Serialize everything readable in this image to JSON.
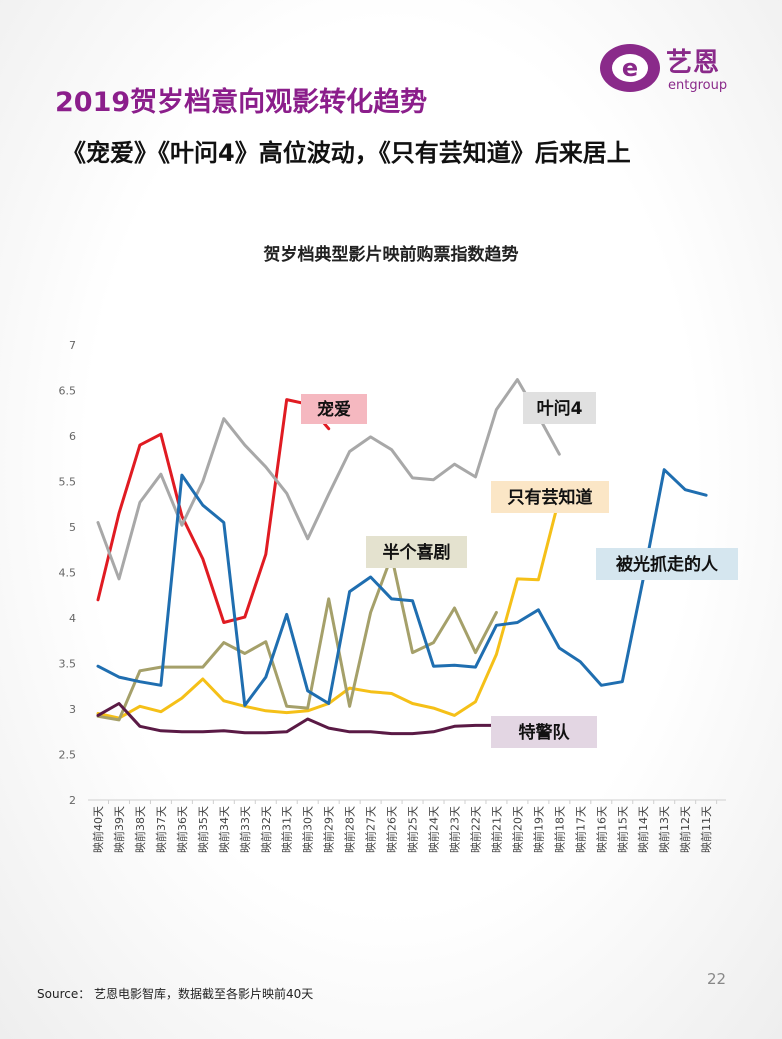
{
  "header": {
    "title": "2019贺岁档意向观影转化趋势",
    "subtitle": "《宠爱》《叶问4》高位波动，《只有芸知道》后来居上",
    "logo_cn": "艺恩",
    "logo_en": "entgroup"
  },
  "colors": {
    "title": "#8b1e8b",
    "logo": "#8a2a8a"
  },
  "footer": {
    "source": "Source： 艺恩电影智库，数据截至各影片映前40天",
    "page": "22"
  },
  "chart_data": {
    "type": "line",
    "title": "贺岁档典型影片映前购票指数趋势",
    "xlabel": "",
    "ylabel": "",
    "ylim": [
      2,
      7
    ],
    "yticks": [
      "2",
      "2.5",
      "3",
      "3.5",
      "4",
      "4.5",
      "5",
      "5.5",
      "6",
      "6.5",
      "7"
    ],
    "grid": false,
    "categories": [
      "映前40天",
      "映前39天",
      "映前38天",
      "映前37天",
      "映前36天",
      "映前35天",
      "映前34天",
      "映前33天",
      "映前32天",
      "映前31天",
      "映前30天",
      "映前29天",
      "映前28天",
      "映前27天",
      "映前26天",
      "映前25天",
      "映前24天",
      "映前23天",
      "映前22天",
      "映前21天",
      "映前20天",
      "映前19天",
      "映前18天",
      "映前17天",
      "映前16天",
      "映前15天",
      "映前14天",
      "映前13天",
      "映前12天",
      "映前11天"
    ],
    "series": [
      {
        "name": "宠爱",
        "color": "#e01b22",
        "values": [
          4.2,
          5.15,
          5.9,
          6.02,
          5.12,
          4.65,
          3.95,
          4.01,
          4.7,
          6.4,
          6.35,
          6.08,
          null,
          null,
          null,
          null,
          null,
          null,
          null,
          null,
          null,
          null,
          null,
          null,
          null,
          null,
          null,
          null,
          null,
          null
        ]
      },
      {
        "name": "叶问4",
        "color": "#a8a8a8",
        "values": [
          5.05,
          4.43,
          5.27,
          5.58,
          5.02,
          5.5,
          6.19,
          5.9,
          5.66,
          5.37,
          4.87,
          5.36,
          5.83,
          5.99,
          5.85,
          5.54,
          5.52,
          5.69,
          5.55,
          6.29,
          6.62,
          6.22,
          5.8,
          null,
          null,
          null,
          null,
          null,
          null,
          null
        ]
      },
      {
        "name": "只有芸知道",
        "color": "#f5c018",
        "values": [
          2.95,
          2.9,
          3.03,
          2.97,
          3.12,
          3.33,
          3.09,
          3.03,
          2.98,
          2.96,
          2.98,
          3.06,
          3.23,
          3.19,
          3.17,
          3.06,
          3.01,
          2.93,
          3.08,
          3.6,
          4.43,
          4.42,
          5.32,
          null,
          null,
          null,
          null,
          null,
          null,
          null
        ]
      },
      {
        "name": "半个喜剧",
        "color": "#a5a06a",
        "values": [
          2.92,
          2.88,
          3.42,
          3.46,
          3.46,
          3.46,
          3.73,
          3.61,
          3.74,
          3.03,
          3.01,
          4.21,
          3.03,
          4.06,
          4.68,
          3.62,
          3.73,
          4.11,
          3.62,
          4.06,
          null,
          null,
          null,
          null,
          null,
          null,
          null,
          null,
          null,
          null
        ]
      },
      {
        "name": "被光抓走的人",
        "color": "#1f6eb0",
        "values": [
          3.47,
          3.35,
          3.3,
          3.26,
          5.57,
          5.24,
          5.05,
          3.04,
          3.35,
          4.04,
          3.2,
          3.06,
          4.29,
          4.45,
          4.21,
          4.19,
          3.47,
          3.48,
          3.46,
          3.92,
          3.95,
          4.09,
          3.67,
          3.52,
          3.26,
          3.3,
          4.43,
          5.63,
          5.41,
          5.35
        ]
      },
      {
        "name": "特警队",
        "color": "#5a1a45",
        "values": [
          2.93,
          3.06,
          2.81,
          2.76,
          2.75,
          2.75,
          2.76,
          2.74,
          2.74,
          2.75,
          2.89,
          2.79,
          2.75,
          2.75,
          2.73,
          2.73,
          2.75,
          2.81,
          2.82,
          2.82,
          null,
          null,
          null,
          null,
          null,
          null,
          null,
          null,
          null,
          null
        ]
      }
    ],
    "labels": [
      {
        "series": "宠爱",
        "text": "宠爱",
        "bg": "#f5b8c0"
      },
      {
        "series": "叶问4",
        "text": "叶问4",
        "bg": "#e0e0e0"
      },
      {
        "series": "只有芸知道",
        "text": "只有芸知道",
        "bg": "#fbe6c6"
      },
      {
        "series": "半个喜剧",
        "text": "半个喜剧",
        "bg": "#e4e2cf"
      },
      {
        "series": "被光抓走的人",
        "text": "被光抓走的人",
        "bg": "#d5e6ef"
      },
      {
        "series": "特警队",
        "text": "特警队",
        "bg": "#e3d6e3"
      }
    ]
  }
}
